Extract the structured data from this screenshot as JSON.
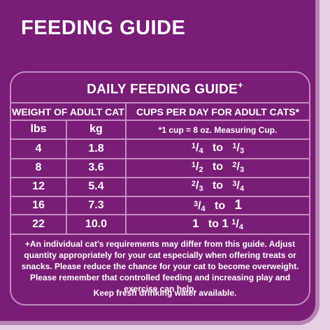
{
  "title": "FEEDING GUIDE",
  "guide": {
    "heading": "DAILY FEEDING GUIDE",
    "heading_mark": "+",
    "col_weight": "WEIGHT OF ADULT CAT",
    "col_cups": "CUPS PER DAY FOR ADULT CATS*",
    "unit_lbs": "lbs",
    "unit_kg": "kg",
    "cup_note": "*1 cup = 8 oz. Measuring Cup.",
    "rows": [
      {
        "lbs": "4",
        "kg": "1.8",
        "from_n": "1",
        "from_d": "4",
        "to_word": "to",
        "to_whole": "",
        "to_n": "1",
        "to_d": "3"
      },
      {
        "lbs": "8",
        "kg": "3.6",
        "from_n": "1",
        "from_d": "2",
        "to_word": "to",
        "to_whole": "",
        "to_n": "2",
        "to_d": "3"
      },
      {
        "lbs": "12",
        "kg": "5.4",
        "from_n": "2",
        "from_d": "3",
        "to_word": "to",
        "to_whole": "",
        "to_n": "3",
        "to_d": "4"
      },
      {
        "lbs": "16",
        "kg": "7.3",
        "from_n": "3",
        "from_d": "4",
        "to_word": "to",
        "to_whole": "1",
        "to_n": "",
        "to_d": ""
      },
      {
        "lbs": "22",
        "kg": "10.0",
        "from_whole": "1",
        "to_word": "to",
        "to_whole": "1",
        "to_n": "1",
        "to_d": "4"
      }
    ]
  },
  "footnote": "+An individual cat's requirements may differ from this guide.  Adjust quantity appropriately for your cat especially when offering treats or snacks.  Please reduce the chance for your cat to become overweight. Please remember that controlled feeding and increasing play and exercise can help.",
  "water": "Keep fresh drinking water available.",
  "colors": {
    "background": "#7a1d77",
    "border": "#c38ec2",
    "text": "#ffffff"
  }
}
